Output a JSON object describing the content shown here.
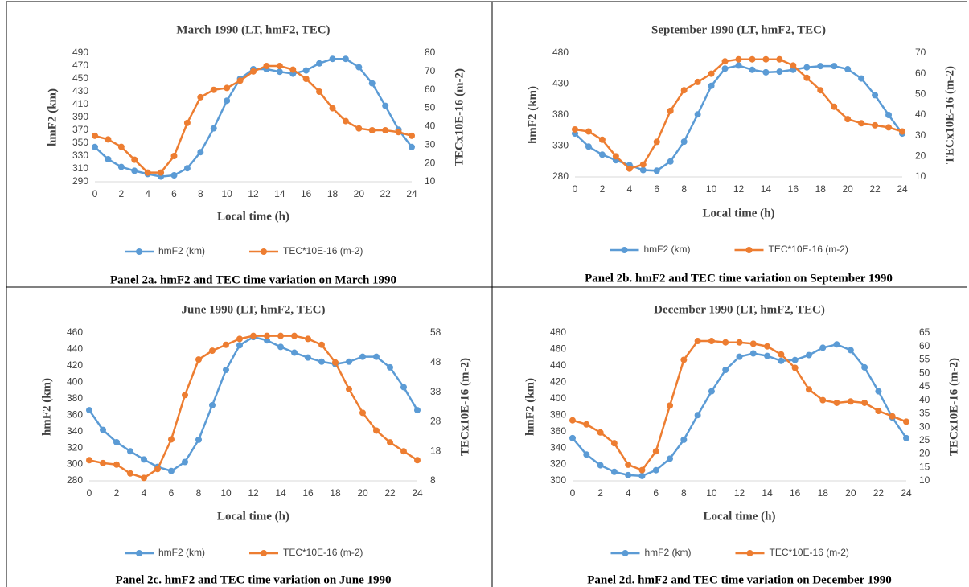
{
  "chart_data": [
    {
      "type": "line",
      "title": "March 1990 (LT, hmF2, TEC)",
      "xlabel": "Local time (h)",
      "ylabel": "hmF2 (km)",
      "y2label": "TECx10E-16 (m-2)",
      "x": [
        0,
        1,
        2,
        3,
        4,
        5,
        6,
        7,
        8,
        9,
        10,
        11,
        12,
        13,
        14,
        15,
        16,
        17,
        18,
        19,
        20,
        21,
        22,
        23,
        24
      ],
      "xlim": [
        0,
        24
      ],
      "xticks": [
        0,
        2,
        4,
        6,
        8,
        10,
        12,
        14,
        16,
        18,
        20,
        22,
        24
      ],
      "ylim": [
        290,
        490
      ],
      "yticks": [
        290,
        310,
        330,
        350,
        370,
        390,
        410,
        430,
        450,
        470,
        490
      ],
      "y2lim": [
        10,
        80
      ],
      "y2ticks": [
        10,
        20,
        30,
        40,
        50,
        60,
        70,
        80
      ],
      "legend": "bottom",
      "series": [
        {
          "name": "hmF2 (km)",
          "color": "#5b9bd5",
          "values": [
            344,
            325,
            313,
            307,
            302,
            298,
            300,
            311,
            336,
            373,
            416,
            450,
            465,
            465,
            461,
            458,
            463,
            474,
            481,
            481,
            468,
            443,
            408,
            371,
            344
          ]
        },
        {
          "name": "TEC*10E-16 (m-2)",
          "color": "#ed7d31",
          "axis": "y2",
          "values": [
            35,
            33,
            29,
            22,
            15,
            15,
            24,
            42,
            56,
            60,
            61,
            65,
            70,
            73,
            73,
            71,
            66,
            59,
            50,
            43,
            39,
            38,
            38,
            37,
            35
          ]
        }
      ]
    },
    {
      "type": "line",
      "title": "September 1990 (LT, hmF2, TEC)",
      "xlabel": "Local time (h)",
      "ylabel": "hmF2 (km)",
      "y2label": "TECx10E-16 (m-2)",
      "x": [
        0,
        1,
        2,
        3,
        4,
        5,
        6,
        7,
        8,
        9,
        10,
        11,
        12,
        13,
        14,
        15,
        16,
        17,
        18,
        19,
        20,
        21,
        22,
        23,
        24
      ],
      "xlim": [
        0,
        24
      ],
      "xticks": [
        0,
        2,
        4,
        6,
        8,
        10,
        12,
        14,
        16,
        18,
        20,
        22,
        24
      ],
      "ylim": [
        280,
        480
      ],
      "yticks": [
        280,
        330,
        380,
        430,
        480
      ],
      "y2lim": [
        10,
        70
      ],
      "y2ticks": [
        10,
        20,
        30,
        40,
        50,
        60,
        70
      ],
      "legend": "bottom",
      "series": [
        {
          "name": "hmF2 (km)",
          "color": "#5b9bd5",
          "values": [
            350,
            329,
            316,
            307,
            299,
            291,
            290,
            305,
            337,
            381,
            427,
            455,
            460,
            453,
            449,
            450,
            453,
            457,
            459,
            459,
            454,
            439,
            412,
            380,
            350
          ]
        },
        {
          "name": "TEC*10E-16 (m-2)",
          "color": "#ed7d31",
          "axis": "y2",
          "values": [
            33,
            32,
            28,
            20,
            14,
            16,
            27,
            42,
            52,
            56,
            60,
            66,
            67,
            67,
            67,
            67,
            64,
            58,
            52,
            44,
            38,
            36,
            35,
            34,
            32
          ]
        }
      ]
    },
    {
      "type": "line",
      "title": "June 1990 (LT, hmF2, TEC)",
      "xlabel": "Local time (h)",
      "ylabel": "hmF2 (km)",
      "y2label": "TECx10E-16 (m-2)",
      "x": [
        0,
        1,
        2,
        3,
        4,
        5,
        6,
        7,
        8,
        9,
        10,
        11,
        12,
        13,
        14,
        15,
        16,
        17,
        18,
        19,
        20,
        21,
        22,
        23,
        24
      ],
      "xlim": [
        0,
        24
      ],
      "xticks": [
        0,
        2,
        4,
        6,
        8,
        10,
        12,
        14,
        16,
        18,
        20,
        22,
        24
      ],
      "ylim": [
        280,
        460
      ],
      "yticks": [
        280,
        300,
        320,
        340,
        360,
        380,
        400,
        420,
        440,
        460
      ],
      "y2lim": [
        8,
        58
      ],
      "y2ticks": [
        8,
        18,
        28,
        38,
        48,
        58
      ],
      "legend": "bottom",
      "series": [
        {
          "name": "hmF2 (km)",
          "color": "#5b9bd5",
          "values": [
            366,
            342,
            327,
            316,
            306,
            297,
            292,
            303,
            330,
            372,
            415,
            445,
            455,
            451,
            443,
            436,
            430,
            425,
            422,
            425,
            431,
            431,
            418,
            394,
            366
          ]
        },
        {
          "name": "TEC*10E-16 (m-2)",
          "color": "#ed7d31",
          "axis": "y2",
          "values": [
            15,
            14,
            13.5,
            10.5,
            9,
            12,
            22,
            37,
            49,
            52,
            54,
            56,
            57,
            57,
            57,
            57,
            56,
            54,
            48,
            39,
            31,
            25,
            21,
            18,
            15
          ]
        }
      ]
    },
    {
      "type": "line",
      "title": "December 1990 (LT, hmF2, TEC)",
      "xlabel": "Local time (h)",
      "ylabel": "hmF2 (km)",
      "y2label": "TECx10E-16 (m-2)",
      "x": [
        0,
        1,
        2,
        3,
        4,
        5,
        6,
        7,
        8,
        9,
        10,
        11,
        12,
        13,
        14,
        15,
        16,
        17,
        18,
        19,
        20,
        21,
        22,
        23,
        24
      ],
      "xlim": [
        0,
        24
      ],
      "xticks": [
        0,
        2,
        4,
        6,
        8,
        10,
        12,
        14,
        16,
        18,
        20,
        22,
        24
      ],
      "ylim": [
        300,
        480
      ],
      "yticks": [
        300,
        320,
        340,
        360,
        380,
        400,
        420,
        440,
        460,
        480
      ],
      "y2lim": [
        10,
        65
      ],
      "y2ticks": [
        10,
        15,
        20,
        25,
        30,
        35,
        40,
        45,
        50,
        55,
        60,
        65
      ],
      "legend": "bottom",
      "series": [
        {
          "name": "hmF2 (km)",
          "color": "#5b9bd5",
          "values": [
            352,
            332,
            319,
            311,
            307,
            306,
            313,
            327,
            350,
            380,
            409,
            435,
            451,
            455,
            452,
            446,
            447,
            453,
            462,
            466,
            459,
            438,
            409,
            377,
            352
          ]
        },
        {
          "name": "TEC*10E-16 (m-2)",
          "color": "#ed7d31",
          "axis": "y2",
          "values": [
            32.5,
            31,
            28,
            24,
            16,
            14,
            21,
            38,
            55,
            62,
            62,
            61.5,
            61.5,
            61,
            60,
            57,
            52,
            44,
            40,
            39,
            39.5,
            39,
            36,
            34,
            32
          ]
        }
      ]
    }
  ],
  "captions": [
    "Panel 2a. hmF2 and TEC time variation on March 1990",
    "Panel 2b. hmF2 and TEC time variation on September 1990",
    "Panel 2c. hmF2 and TEC time variation on June 1990",
    "Panel 2d. hmF2 and TEC time variation on December 1990"
  ]
}
